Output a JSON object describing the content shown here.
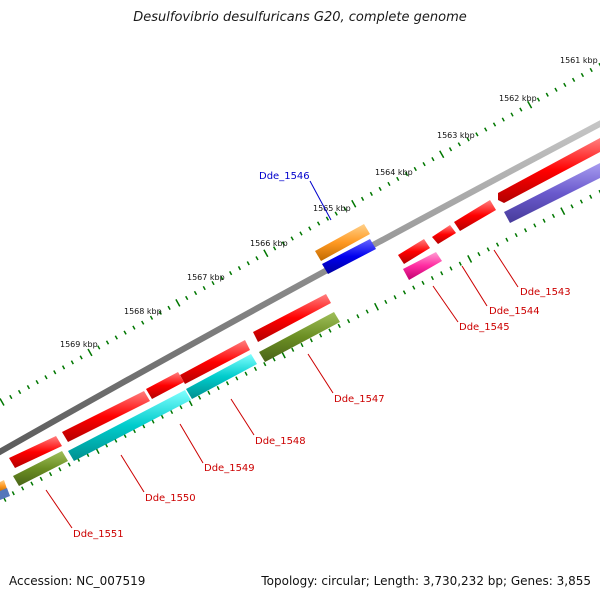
{
  "title": "Desulfovibrio desulfuricans G20, complete genome",
  "footer": {
    "accession": "Accession: NC_007519",
    "summary": "Topology: circular; Length: 3,730,232 bp; Genes: 3,855"
  },
  "ticks": [
    "1561 kbp",
    "1562 kbp",
    "1563 kbp",
    "1564 kbp",
    "1565 kbp",
    "1566 kbp",
    "1567 kbp",
    "1568 kbp",
    "1569 kbp"
  ],
  "genes": [
    {
      "label": "Dde_1543",
      "color": "#cc0000"
    },
    {
      "label": "Dde_1544",
      "color": "#cc0000"
    },
    {
      "label": "Dde_1545",
      "color": "#cc0000"
    },
    {
      "label": "Dde_1546",
      "color": "#0000cc"
    },
    {
      "label": "Dde_1547",
      "color": "#cc0000"
    },
    {
      "label": "Dde_1548",
      "color": "#cc0000"
    },
    {
      "label": "Dde_1549",
      "color": "#cc0000"
    },
    {
      "label": "Dde_1550",
      "color": "#cc0000"
    },
    {
      "label": "Dde_1551",
      "color": "#cc0000"
    }
  ],
  "colors": {
    "cds": "#ff0000",
    "trna": "#ff9922",
    "rna": "#0000ee",
    "misc": "#ff2aa0",
    "ccw_green": "#6b8e23",
    "ccw_cyan": "#00cccc",
    "ccw_purple": "#6a5acd",
    "backbone": "#888888",
    "tick": "#007700"
  }
}
